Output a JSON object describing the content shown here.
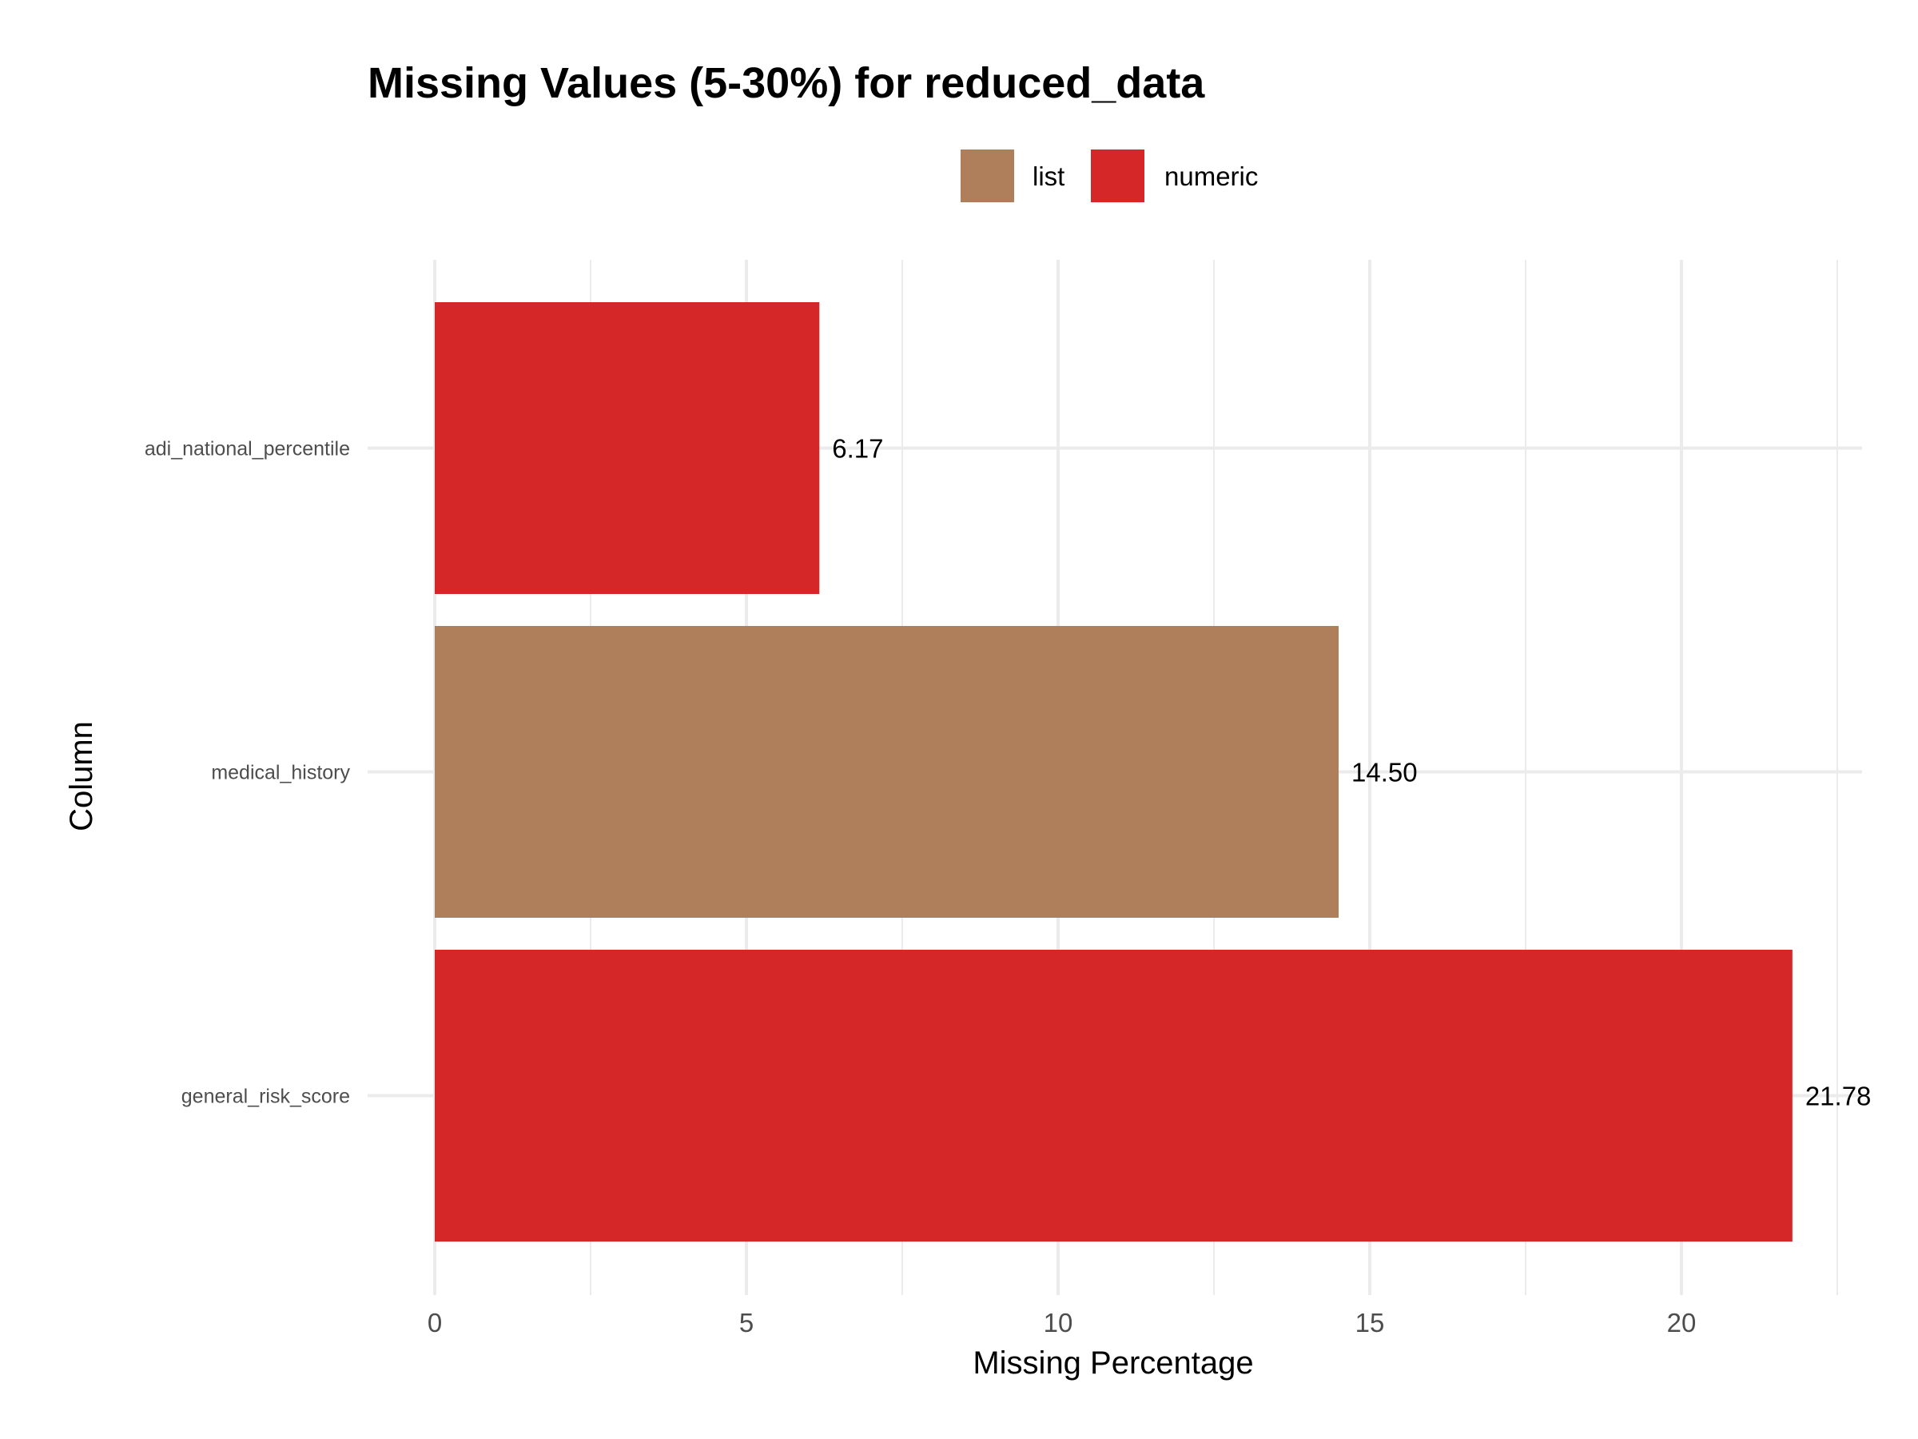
{
  "chart_data": {
    "type": "bar",
    "orientation": "horizontal",
    "title": "Missing Values (5-30%) for reduced_data",
    "xlabel": "Missing Percentage",
    "ylabel": "Column",
    "xlim": [
      0,
      22.5
    ],
    "x_ticks": [
      0,
      5,
      10,
      15,
      20
    ],
    "x_tick_labels": [
      "0",
      "5",
      "10",
      "15",
      "20"
    ],
    "grid": true,
    "legend_position": "top",
    "legend": [
      {
        "name": "list",
        "color": "#AF7F5B"
      },
      {
        "name": "numeric",
        "color": "#D62728"
      }
    ],
    "categories": [
      "adi_national_percentile",
      "medical_history",
      "general_risk_score"
    ],
    "values": [
      6.17,
      14.5,
      21.78
    ],
    "labels": [
      "6.17",
      "14.50",
      "21.78"
    ],
    "types": [
      "numeric",
      "list",
      "numeric"
    ]
  }
}
